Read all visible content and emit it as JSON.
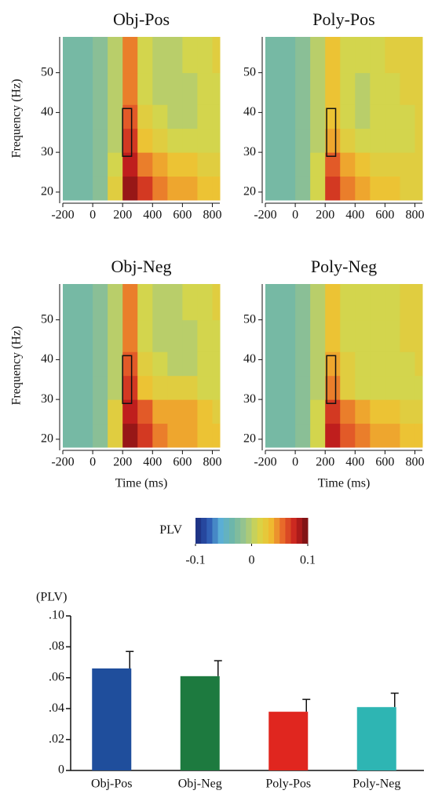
{
  "chart_data": [
    {
      "type": "heatmap",
      "title": "Obj-Pos",
      "ylabel": "Frequency (Hz)",
      "x_edges": [
        -200,
        -100,
        0,
        100,
        200,
        300,
        400,
        500,
        600,
        700,
        800,
        850
      ],
      "y_edges": [
        18,
        24,
        30,
        36,
        42,
        50,
        59
      ],
      "values": [
        [
          -0.03,
          -0.03,
          -0.02,
          0.02,
          0.09,
          0.07,
          0.05,
          0.04,
          0.04,
          0.03,
          0.03
        ],
        [
          -0.03,
          -0.03,
          -0.02,
          0.01,
          0.08,
          0.05,
          0.04,
          0.03,
          0.03,
          0.02,
          0.02
        ],
        [
          -0.03,
          -0.03,
          -0.02,
          0.0,
          0.07,
          0.03,
          0.02,
          0.01,
          0.01,
          0.01,
          0.01
        ],
        [
          -0.03,
          -0.03,
          -0.02,
          0.0,
          0.06,
          0.02,
          0.01,
          0.0,
          0.0,
          0.01,
          0.01
        ],
        [
          -0.03,
          -0.03,
          -0.02,
          0.0,
          0.05,
          0.01,
          0.0,
          0.0,
          0.0,
          0.01,
          0.01
        ],
        [
          -0.03,
          -0.03,
          -0.02,
          0.0,
          0.05,
          0.01,
          0.0,
          0.0,
          0.01,
          0.01,
          0.02
        ]
      ],
      "xlim": [
        -200,
        850
      ],
      "ylim": [
        18,
        59
      ],
      "xticks": [
        -200,
        0,
        200,
        400,
        600,
        800
      ],
      "yticks": [
        20,
        30,
        40,
        50
      ],
      "window": {
        "x": [
          200,
          260
        ],
        "y": [
          29,
          41
        ]
      }
    },
    {
      "type": "heatmap",
      "title": "Poly-Pos",
      "x_edges": [
        -200,
        -100,
        0,
        100,
        200,
        300,
        400,
        500,
        600,
        700,
        800,
        850
      ],
      "y_edges": [
        18,
        24,
        30,
        36,
        42,
        50,
        59
      ],
      "values": [
        [
          -0.03,
          -0.03,
          -0.02,
          0.01,
          0.07,
          0.05,
          0.04,
          0.03,
          0.03,
          0.02,
          0.02
        ],
        [
          -0.03,
          -0.03,
          -0.02,
          0.01,
          0.06,
          0.04,
          0.03,
          0.02,
          0.02,
          0.02,
          0.02
        ],
        [
          -0.03,
          -0.03,
          -0.02,
          0.0,
          0.04,
          0.02,
          0.01,
          0.01,
          0.01,
          0.01,
          0.02
        ],
        [
          -0.03,
          -0.03,
          -0.02,
          0.0,
          0.03,
          0.01,
          0.0,
          0.01,
          0.01,
          0.01,
          0.02
        ],
        [
          -0.03,
          -0.03,
          -0.02,
          0.0,
          0.03,
          0.01,
          0.0,
          0.01,
          0.01,
          0.02,
          0.02
        ],
        [
          -0.03,
          -0.03,
          -0.02,
          0.0,
          0.03,
          0.01,
          0.01,
          0.01,
          0.02,
          0.02,
          0.02
        ]
      ],
      "xlim": [
        -200,
        850
      ],
      "ylim": [
        18,
        59
      ],
      "xticks": [
        -200,
        0,
        200,
        400,
        600,
        800
      ],
      "yticks": [
        20,
        30,
        40,
        50
      ],
      "window": {
        "x": [
          210,
          270
        ],
        "y": [
          29,
          41
        ]
      }
    },
    {
      "type": "heatmap",
      "title": "Obj-Neg",
      "ylabel": "Frequency (Hz)",
      "xlabel": "Time (ms)",
      "x_edges": [
        -200,
        -100,
        0,
        100,
        200,
        300,
        400,
        500,
        600,
        700,
        800,
        850
      ],
      "y_edges": [
        18,
        24,
        30,
        36,
        42,
        50,
        59
      ],
      "values": [
        [
          -0.03,
          -0.03,
          -0.02,
          0.02,
          0.09,
          0.07,
          0.05,
          0.04,
          0.04,
          0.03,
          0.03
        ],
        [
          -0.03,
          -0.03,
          -0.02,
          0.02,
          0.08,
          0.06,
          0.04,
          0.04,
          0.04,
          0.03,
          0.02
        ],
        [
          -0.03,
          -0.03,
          -0.02,
          0.0,
          0.07,
          0.03,
          0.02,
          0.02,
          0.02,
          0.01,
          0.01
        ],
        [
          -0.03,
          -0.03,
          -0.02,
          0.0,
          0.06,
          0.02,
          0.01,
          0.0,
          0.0,
          0.01,
          0.01
        ],
        [
          -0.03,
          -0.03,
          -0.02,
          0.0,
          0.05,
          0.01,
          0.0,
          0.0,
          0.0,
          0.01,
          0.01
        ],
        [
          -0.03,
          -0.03,
          -0.02,
          0.0,
          0.05,
          0.01,
          0.0,
          0.0,
          0.01,
          0.01,
          0.02
        ]
      ],
      "xlim": [
        -200,
        850
      ],
      "ylim": [
        18,
        59
      ],
      "xticks": [
        -200,
        0,
        200,
        400,
        600,
        800
      ],
      "yticks": [
        20,
        30,
        40,
        50
      ],
      "window": {
        "x": [
          200,
          260
        ],
        "y": [
          29,
          41
        ]
      }
    },
    {
      "type": "heatmap",
      "title": "Poly-Neg",
      "xlabel": "Time (ms)",
      "x_edges": [
        -200,
        -100,
        0,
        100,
        200,
        300,
        400,
        500,
        600,
        700,
        800,
        850
      ],
      "y_edges": [
        18,
        24,
        30,
        36,
        42,
        50,
        59
      ],
      "values": [
        [
          -0.03,
          -0.03,
          -0.02,
          0.01,
          0.08,
          0.06,
          0.05,
          0.04,
          0.04,
          0.03,
          0.03
        ],
        [
          -0.03,
          -0.03,
          -0.02,
          0.01,
          0.07,
          0.05,
          0.04,
          0.03,
          0.03,
          0.02,
          0.02
        ],
        [
          -0.03,
          -0.03,
          -0.02,
          0.0,
          0.05,
          0.02,
          0.01,
          0.01,
          0.01,
          0.01,
          0.01
        ],
        [
          -0.03,
          -0.03,
          -0.02,
          0.0,
          0.04,
          0.02,
          0.01,
          0.01,
          0.01,
          0.01,
          0.02
        ],
        [
          -0.03,
          -0.03,
          -0.02,
          0.0,
          0.03,
          0.01,
          0.01,
          0.01,
          0.01,
          0.02,
          0.02
        ],
        [
          -0.03,
          -0.03,
          -0.02,
          0.0,
          0.03,
          0.01,
          0.01,
          0.01,
          0.01,
          0.02,
          0.02
        ]
      ],
      "xlim": [
        -200,
        850
      ],
      "ylim": [
        18,
        59
      ],
      "xticks": [
        -200,
        0,
        200,
        400,
        600,
        800
      ],
      "yticks": [
        20,
        30,
        40,
        50
      ],
      "window": {
        "x": [
          210,
          270
        ],
        "y": [
          29,
          41
        ]
      }
    },
    {
      "type": "colorbar",
      "label": "PLV",
      "lim": [
        -0.1,
        0.1
      ],
      "ticks": [
        -0.1,
        0,
        0.1
      ],
      "colormap": [
        "#1c2a7a",
        "#2b55b0",
        "#5aaed6",
        "#6fb7a8",
        "#9cc58a",
        "#d6d64a",
        "#f0c030",
        "#e8682a",
        "#c8201e",
        "#6e0f12"
      ]
    },
    {
      "type": "bar",
      "ylabel": "(PLV)",
      "categories": [
        "Obj-Pos",
        "Obj-Neg",
        "Poly-Pos",
        "Poly-Neg"
      ],
      "values": [
        0.066,
        0.061,
        0.038,
        0.041
      ],
      "errors": [
        0.011,
        0.01,
        0.008,
        0.009
      ],
      "colors": [
        "#1f4e9c",
        "#1d7a3f",
        "#e0261f",
        "#2eb5b3"
      ],
      "ylim": [
        0,
        0.1
      ],
      "yticks": [
        0,
        {
          "value": 0.02,
          "label": ".02"
        },
        {
          "value": 0.04,
          "label": ".04"
        },
        {
          "value": 0.06,
          "label": ".06"
        },
        {
          "value": 0.08,
          "label": ".08"
        },
        {
          "value": 0.1,
          "label": ".10"
        }
      ]
    }
  ]
}
